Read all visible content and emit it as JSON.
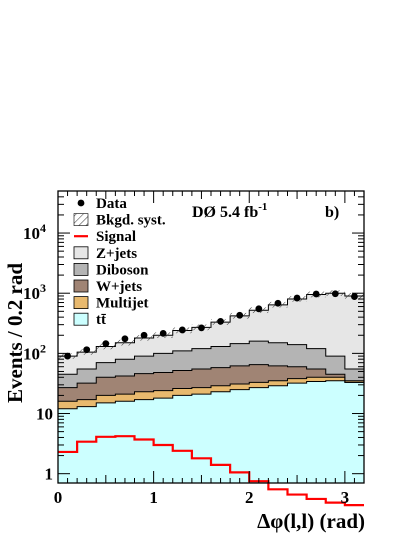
{
  "chart_data": {
    "type": "histogram-stacked",
    "experiment_label": "DØ 5.4 fb",
    "experiment_label_sup": "-1",
    "panel_label": "b)",
    "xlabel": "Δφ(l,l) (rad)",
    "ylabel": "Events / 0.2 rad",
    "xlim": [
      0,
      3.2
    ],
    "ylim": [
      0.7,
      50000
    ],
    "yscale": "log",
    "x_ticks": [
      {
        "v": 0,
        "label": "0"
      },
      {
        "v": 1,
        "label": "1"
      },
      {
        "v": 2,
        "label": "2"
      },
      {
        "v": 3,
        "label": "3"
      }
    ],
    "y_ticks": [
      {
        "v": 1,
        "base": "1",
        "exp": ""
      },
      {
        "v": 10,
        "base": "10",
        "exp": ""
      },
      {
        "v": 100,
        "base": "10",
        "exp": "2"
      },
      {
        "v": 1000,
        "base": "10",
        "exp": "3"
      },
      {
        "v": 10000,
        "base": "10",
        "exp": "4"
      }
    ],
    "bin_edges": [
      0,
      0.2,
      0.4,
      0.6,
      0.8,
      1.0,
      1.2,
      1.4,
      1.6,
      1.8,
      2.0,
      2.2,
      2.4,
      2.6,
      2.8,
      3.0,
      3.2
    ],
    "stack_cumulative": [
      {
        "name": "tt̄",
        "color": "#ccffff",
        "values": [
          12,
          13,
          15,
          16,
          17,
          18,
          20,
          21,
          23,
          25,
          27,
          29,
          32,
          34,
          35,
          33
        ]
      },
      {
        "name": "Multijet",
        "color": "#e8b96e",
        "values": [
          16,
          17,
          20,
          21,
          23,
          24,
          26,
          27,
          29,
          31,
          33,
          35,
          38,
          40,
          40,
          35
        ]
      },
      {
        "name": "W+jets",
        "color": "#a08474",
        "values": [
          27,
          32,
          40,
          42,
          46,
          48,
          52,
          55,
          58,
          62,
          65,
          62,
          60,
          55,
          45,
          33
        ]
      },
      {
        "name": "Diboson",
        "color": "#b4b4b4",
        "values": [
          45,
          55,
          70,
          80,
          90,
          100,
          110,
          120,
          130,
          145,
          160,
          150,
          140,
          120,
          90,
          55
        ]
      },
      {
        "name": "Z+jets",
        "color": "#e6e6e6",
        "values": [
          90,
          105,
          130,
          150,
          180,
          200,
          240,
          270,
          330,
          420,
          520,
          640,
          800,
          950,
          1000,
          900
        ]
      }
    ],
    "signal": {
      "name": "Signal",
      "color": "#ff0000",
      "values": [
        2.3,
        3.4,
        4.1,
        4.2,
        3.7,
        3.0,
        2.4,
        1.8,
        1.4,
        1.05,
        0.75,
        0.55,
        0.45,
        0.38,
        0.33,
        0.3
      ]
    },
    "data": {
      "name": "Data",
      "x": [
        0.1,
        0.3,
        0.5,
        0.7,
        0.9,
        1.1,
        1.3,
        1.5,
        1.7,
        1.9,
        2.1,
        2.3,
        2.5,
        2.7,
        2.9,
        3.1
      ],
      "values": [
        90,
        115,
        145,
        175,
        200,
        215,
        245,
        265,
        340,
        430,
        550,
        680,
        830,
        970,
        980,
        880
      ]
    },
    "legend": [
      {
        "key": "data",
        "label": "Data"
      },
      {
        "key": "syst",
        "label": "Bkgd. syst."
      },
      {
        "key": "signal",
        "label": "Signal"
      },
      {
        "key": "zjets",
        "label": "Z+jets"
      },
      {
        "key": "diboson",
        "label": "Diboson"
      },
      {
        "key": "wjets",
        "label": "W+jets"
      },
      {
        "key": "multijet",
        "label": "Multijet"
      },
      {
        "key": "ttbar",
        "label": "tt̄"
      }
    ],
    "legend_colors": {
      "zjets": "#e6e6e6",
      "diboson": "#b4b4b4",
      "wjets": "#a08474",
      "multijet": "#e8b96e",
      "ttbar": "#ccffff",
      "signal": "#ff0000"
    },
    "grid": false,
    "legend_position": "top-left"
  }
}
